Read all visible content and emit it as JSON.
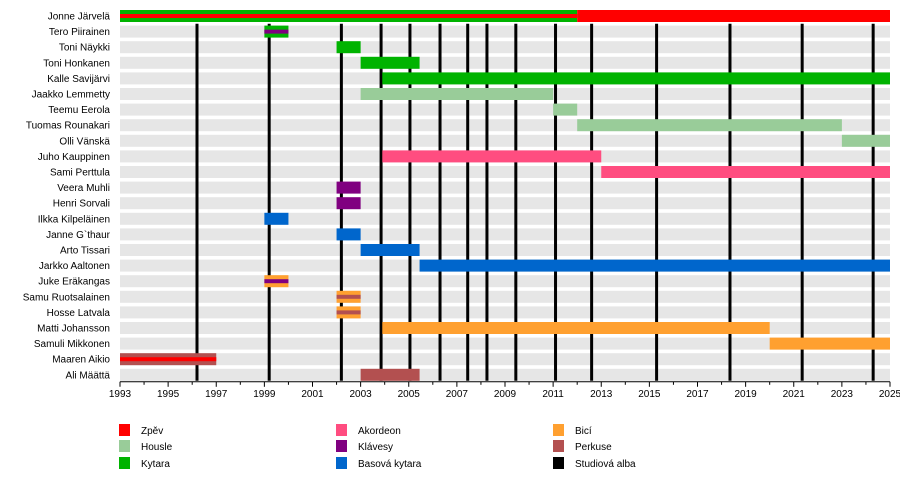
{
  "chart_data": {
    "type": "timeline",
    "xlim": [
      1993,
      2025
    ],
    "x_ticks": [
      1993,
      1995,
      1997,
      1999,
      2001,
      2003,
      2005,
      2007,
      2009,
      2011,
      2013,
      2015,
      2017,
      2019,
      2021,
      2023,
      2025
    ],
    "roles": {
      "Zpev": {
        "label": "Zpěv",
        "color": "#ff0000"
      },
      "Housle": {
        "label": "Housle",
        "color": "#99cc99"
      },
      "Kytara": {
        "label": "Kytara",
        "color": "#00b300"
      },
      "Akordeon": {
        "label": "Akordeon",
        "color": "#ff4d80"
      },
      "Klavesy": {
        "label": "Klávesy",
        "color": "#800080"
      },
      "Basa": {
        "label": "Basová kytara",
        "color": "#0066cc"
      },
      "Bici": {
        "label": "Bicí",
        "color": "#ffa030"
      },
      "Perkuse": {
        "label": "Perkuse",
        "color": "#b35050"
      },
      "Alba": {
        "label": "Studiová alba",
        "color": "#000000"
      }
    },
    "legend_order": [
      [
        "Zpev",
        "Housle",
        "Kytara"
      ],
      [
        "Akordeon",
        "Klavesy",
        "Basa"
      ],
      [
        "Bici",
        "Perkuse",
        "Alba"
      ]
    ],
    "members": [
      {
        "name": "Jonne Järvelä",
        "bars": [
          {
            "from": 1993,
            "to": 2012,
            "role": "Kytara",
            "stripe": "Zpev"
          },
          {
            "from": 2012,
            "to": 2025,
            "role": "Zpev"
          }
        ]
      },
      {
        "name": "Tero Piirainen",
        "bars": [
          {
            "from": 1999,
            "to": 2000,
            "role": "Kytara",
            "stripe": "Klavesy"
          }
        ]
      },
      {
        "name": "Toni Näykki",
        "bars": [
          {
            "from": 2002,
            "to": 2003,
            "role": "Kytara"
          }
        ]
      },
      {
        "name": "Toni Honkanen",
        "bars": [
          {
            "from": 2003,
            "to": 2005.45,
            "role": "Kytara"
          }
        ]
      },
      {
        "name": "Kalle Savijärvi",
        "bars": [
          {
            "from": 2003.9,
            "to": 2025,
            "role": "Kytara"
          }
        ]
      },
      {
        "name": "Jaakko Lemmetty",
        "bars": [
          {
            "from": 2003,
            "to": 2011,
            "role": "Housle"
          }
        ]
      },
      {
        "name": "Teemu Eerola",
        "bars": [
          {
            "from": 2011,
            "to": 2012,
            "role": "Housle"
          }
        ]
      },
      {
        "name": "Tuomas Rounakari",
        "bars": [
          {
            "from": 2012,
            "to": 2023,
            "role": "Housle"
          }
        ]
      },
      {
        "name": "Olli Vänskä",
        "bars": [
          {
            "from": 2023,
            "to": 2025,
            "role": "Housle"
          }
        ]
      },
      {
        "name": "Juho Kauppinen",
        "bars": [
          {
            "from": 2003.9,
            "to": 2013,
            "role": "Akordeon"
          }
        ]
      },
      {
        "name": "Sami Perttula",
        "bars": [
          {
            "from": 2013,
            "to": 2025,
            "role": "Akordeon"
          }
        ]
      },
      {
        "name": "Veera Muhli",
        "bars": [
          {
            "from": 2002,
            "to": 2003,
            "role": "Klavesy"
          }
        ]
      },
      {
        "name": "Henri Sorvali",
        "bars": [
          {
            "from": 2002,
            "to": 2003,
            "role": "Klavesy"
          }
        ]
      },
      {
        "name": "Ilkka Kilpeläinen",
        "bars": [
          {
            "from": 1999,
            "to": 2000,
            "role": "Basa"
          }
        ]
      },
      {
        "name": "Janne G`thaur",
        "bars": [
          {
            "from": 2002,
            "to": 2003,
            "role": "Basa"
          }
        ]
      },
      {
        "name": "Arto Tissari",
        "bars": [
          {
            "from": 2003,
            "to": 2005.45,
            "role": "Basa"
          }
        ]
      },
      {
        "name": "Jarkko Aaltonen",
        "bars": [
          {
            "from": 2005.45,
            "to": 2025,
            "role": "Basa"
          }
        ]
      },
      {
        "name": "Juke Eräkangas",
        "bars": [
          {
            "from": 1999,
            "to": 2000,
            "role": "Bici",
            "stripe": "Klavesy"
          }
        ]
      },
      {
        "name": "Samu Ruotsalainen",
        "bars": [
          {
            "from": 2002,
            "to": 2003,
            "role": "Bici",
            "stripe": "Perkuse"
          }
        ]
      },
      {
        "name": "Hosse Latvala",
        "bars": [
          {
            "from": 2002,
            "to": 2003,
            "role": "Bici",
            "stripe": "Perkuse"
          }
        ]
      },
      {
        "name": "Matti Johansson",
        "bars": [
          {
            "from": 2003.9,
            "to": 2020,
            "role": "Bici"
          }
        ]
      },
      {
        "name": "Samuli Mikkonen",
        "bars": [
          {
            "from": 2020,
            "to": 2025,
            "role": "Bici"
          }
        ]
      },
      {
        "name": "Maaren Aikio",
        "bars": [
          {
            "from": 1993,
            "to": 1997,
            "role": "Perkuse",
            "stripe": "Zpev"
          }
        ]
      },
      {
        "name": "Ali Määttä",
        "bars": [
          {
            "from": 2003,
            "to": 2005.45,
            "role": "Perkuse"
          }
        ]
      }
    ],
    "albums": [
      1996.2,
      1999.2,
      2002.2,
      2003.85,
      2005.05,
      2006.3,
      2007.45,
      2008.25,
      2009.45,
      2011.1,
      2012.6,
      2015.3,
      2018.35,
      2021.35,
      2024.3
    ]
  }
}
